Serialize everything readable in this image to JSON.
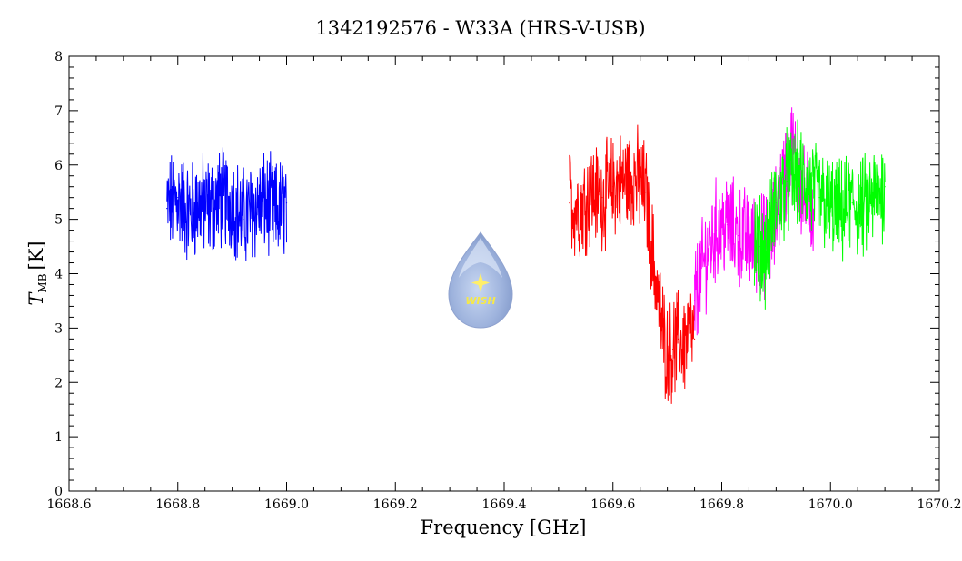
{
  "chart_data": {
    "type": "line",
    "title": "1342192576 - W33A (HRS-V-USB)",
    "xlabel": "Frequency [GHz]",
    "ylabel_main": "T",
    "ylabel_sub": "MB",
    "ylabel_unit": "[K]",
    "xlim": [
      1668.6,
      1670.2
    ],
    "ylim": [
      0,
      8
    ],
    "x_ticks": [
      "1668.6",
      "1668.8",
      "1669.0",
      "1669.2",
      "1669.4",
      "1669.6",
      "1669.8",
      "1670.0",
      "1670.2"
    ],
    "y_ticks": [
      "0",
      "1",
      "2",
      "3",
      "4",
      "5",
      "6",
      "7",
      "8"
    ],
    "grid": false,
    "legend": "none",
    "series": [
      {
        "color": "#0000ff",
        "x": [
          1668.78,
          1668.8,
          1668.82,
          1668.84,
          1668.86,
          1668.88,
          1668.9,
          1668.92,
          1668.94,
          1668.96,
          1668.98,
          1669.0
        ],
        "y": [
          5.2,
          5.4,
          5.1,
          5.3,
          5.2,
          5.4,
          5.3,
          5.0,
          5.2,
          5.3,
          5.1,
          5.3
        ]
      },
      {
        "color": "#ff0000",
        "x": [
          1669.52,
          1669.54,
          1669.56,
          1669.58,
          1669.6,
          1669.62,
          1669.64,
          1669.66,
          1669.67,
          1669.68,
          1669.69,
          1669.7,
          1669.71,
          1669.72,
          1669.73,
          1669.74,
          1669.75
        ],
        "y": [
          5.3,
          5.2,
          5.5,
          5.4,
          5.6,
          5.7,
          5.8,
          5.5,
          4.6,
          3.8,
          3.0,
          2.5,
          2.6,
          2.8,
          2.7,
          2.9,
          2.8
        ]
      },
      {
        "color": "#ff00ff",
        "x": [
          1669.75,
          1669.77,
          1669.79,
          1669.81,
          1669.83,
          1669.85,
          1669.87,
          1669.89,
          1669.91,
          1669.93,
          1669.95,
          1669.97
        ],
        "y": [
          3.5,
          4.3,
          4.8,
          4.9,
          4.7,
          4.6,
          4.5,
          4.6,
          5.6,
          6.3,
          5.4,
          5.2
        ]
      },
      {
        "color": "#00ff00",
        "x": [
          1669.86,
          1669.88,
          1669.9,
          1669.92,
          1669.94,
          1669.96,
          1669.98,
          1670.0,
          1670.02,
          1670.04,
          1670.06,
          1670.08,
          1670.1
        ],
        "y": [
          4.6,
          4.4,
          5.3,
          5.7,
          5.8,
          5.6,
          5.4,
          5.2,
          5.1,
          5.3,
          5.2,
          5.4,
          5.6
        ]
      }
    ]
  },
  "logo": {
    "text": "WISH",
    "icon": "water-drop-logo"
  }
}
